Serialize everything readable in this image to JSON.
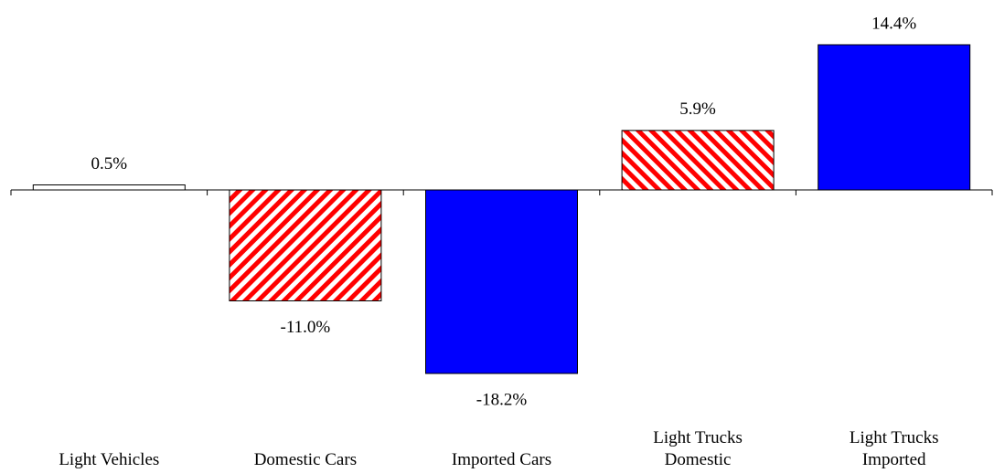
{
  "chart_data": {
    "type": "bar",
    "categories": [
      "Light Vehicles",
      "Domestic Cars",
      "Imported Cars",
      "Light Trucks\nDomestic",
      "Light Trucks\nImported"
    ],
    "values": [
      0.5,
      -11.0,
      -18.2,
      5.9,
      14.4
    ],
    "value_labels": [
      "0.5%",
      "-11.0%",
      "-18.2%",
      "5.9%",
      "14.4%"
    ],
    "colors": [
      "#ffffff",
      "#ff0000",
      "#0000ff",
      "#ff0000",
      "#0000ff"
    ],
    "hatch": [
      "none",
      "/",
      "none",
      "\\",
      "none"
    ]
  }
}
